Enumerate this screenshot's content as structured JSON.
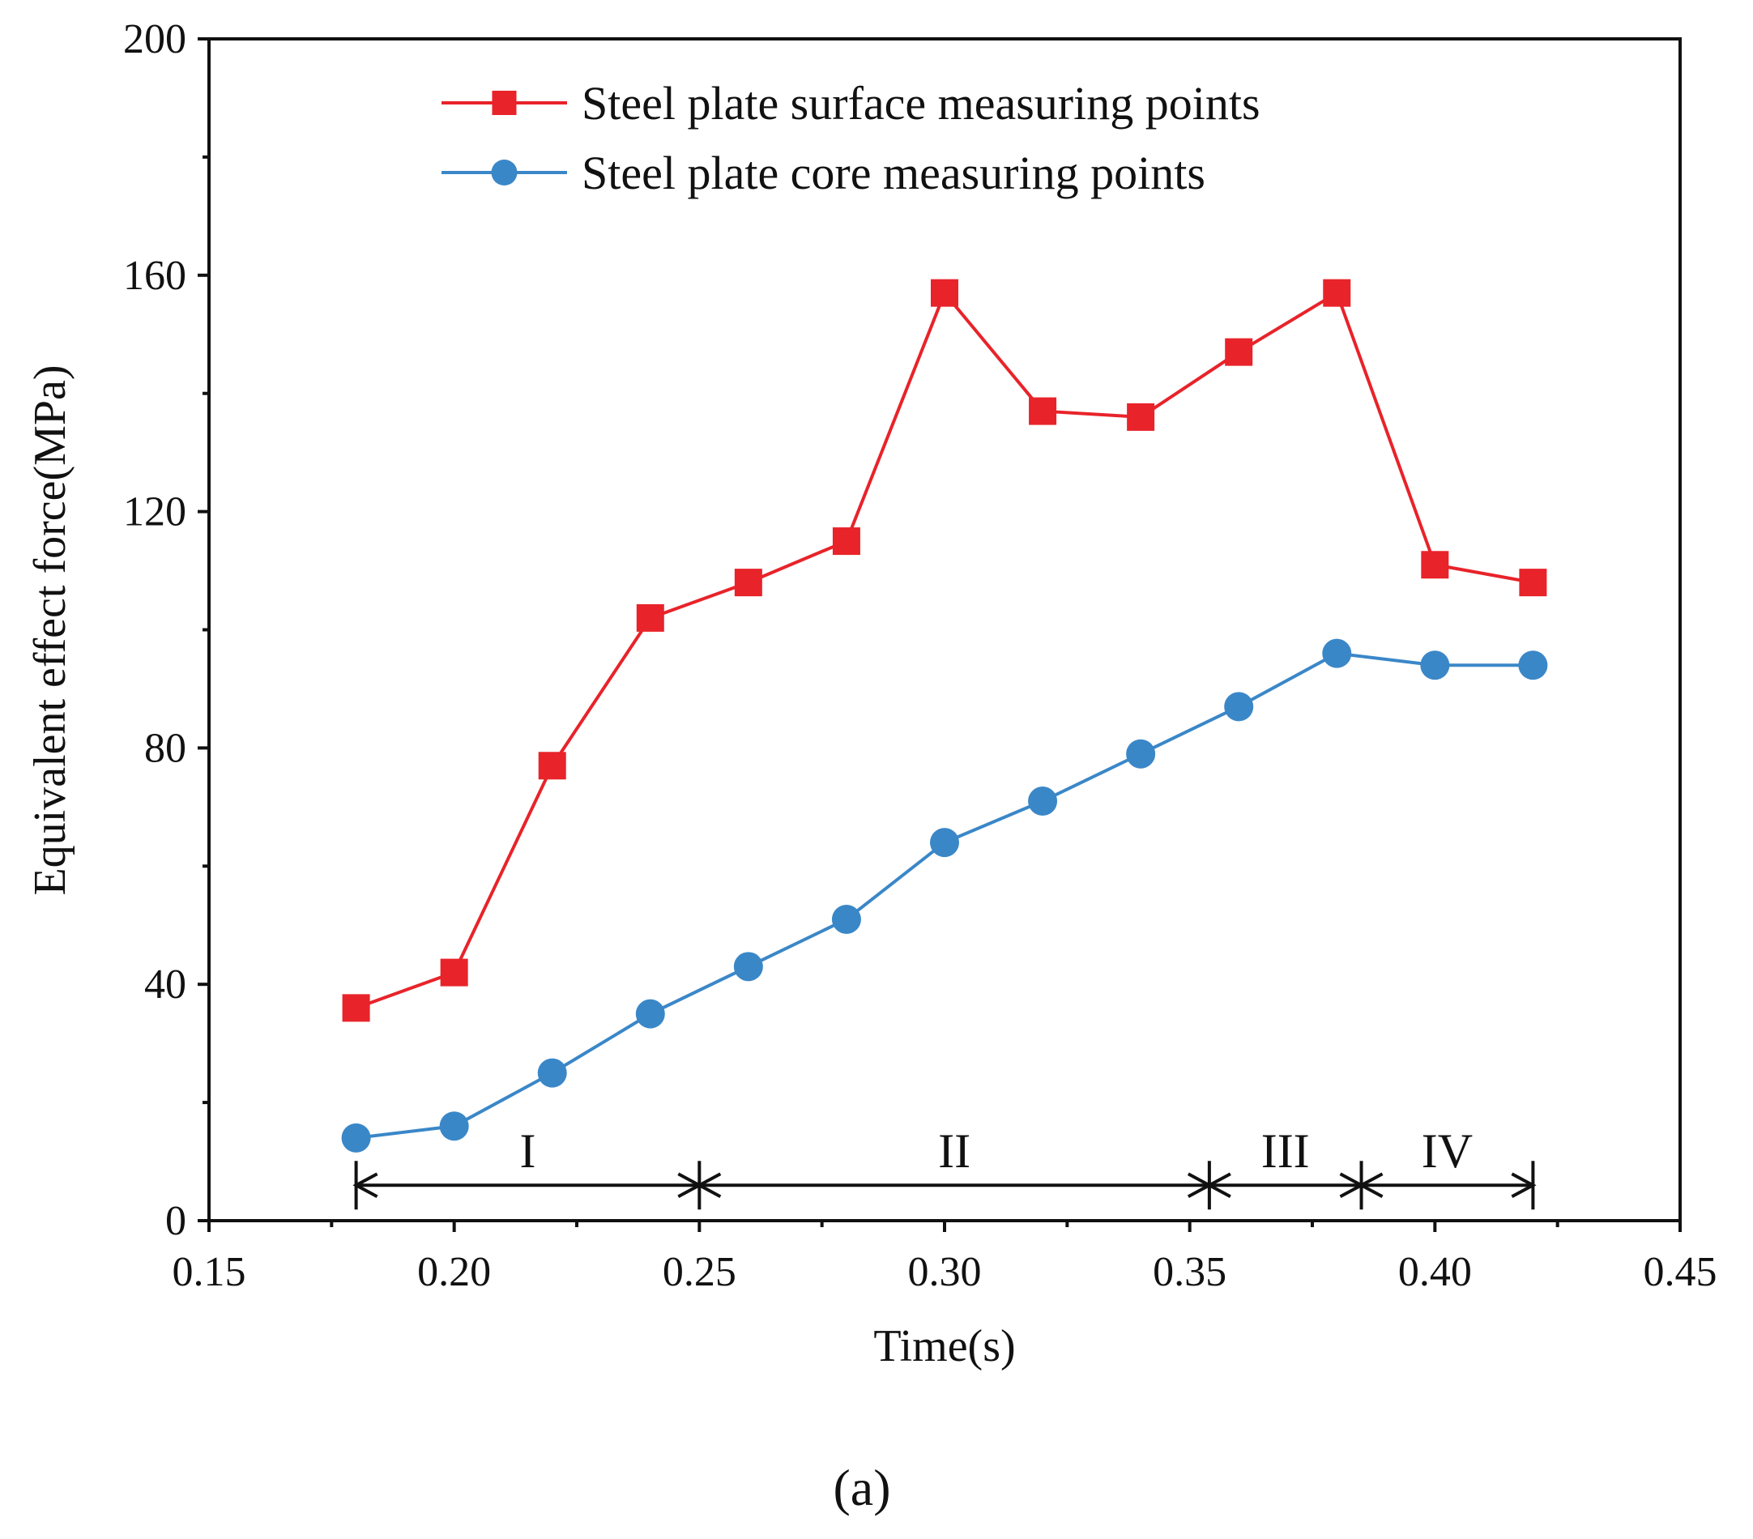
{
  "chart_data": {
    "type": "line",
    "title": "",
    "xlabel": "Time(s)",
    "ylabel": "Equivalent effect force(MPa)",
    "xlim": [
      0.15,
      0.45
    ],
    "ylim": [
      0,
      200
    ],
    "x_ticks": [
      0.15,
      0.2,
      0.25,
      0.3,
      0.35,
      0.4,
      0.45
    ],
    "x_tick_labels": [
      "0.15",
      "0.20",
      "0.25",
      "0.30",
      "0.35",
      "0.40",
      "0.45"
    ],
    "y_ticks": [
      0,
      40,
      80,
      120,
      160,
      200
    ],
    "y_tick_labels": [
      "0",
      "40",
      "80",
      "120",
      "160",
      "200"
    ],
    "x": [
      0.18,
      0.2,
      0.22,
      0.24,
      0.26,
      0.28,
      0.3,
      0.32,
      0.34,
      0.36,
      0.38,
      0.4,
      0.42
    ],
    "series": [
      {
        "name": "Steel plate surface measuring points",
        "color": "#e8232a",
        "marker": "square",
        "values": [
          36,
          42,
          77,
          102,
          108,
          115,
          157,
          137,
          136,
          147,
          157,
          111,
          108
        ]
      },
      {
        "name": "Steel plate core measuring points",
        "color": "#3a87c8",
        "marker": "circle",
        "values": [
          14,
          16,
          25,
          35,
          43,
          51,
          64,
          71,
          79,
          87,
          96,
          94,
          94
        ]
      }
    ],
    "legend_position": "top-center",
    "grid": false,
    "phases": [
      {
        "label": "I",
        "start": 0.18,
        "end": 0.25
      },
      {
        "label": "II",
        "start": 0.25,
        "end": 0.354
      },
      {
        "label": "III",
        "start": 0.354,
        "end": 0.385
      },
      {
        "label": "IV",
        "start": 0.385,
        "end": 0.42
      }
    ],
    "phase_arrow_y": 6
  },
  "panel_label": "(a)"
}
